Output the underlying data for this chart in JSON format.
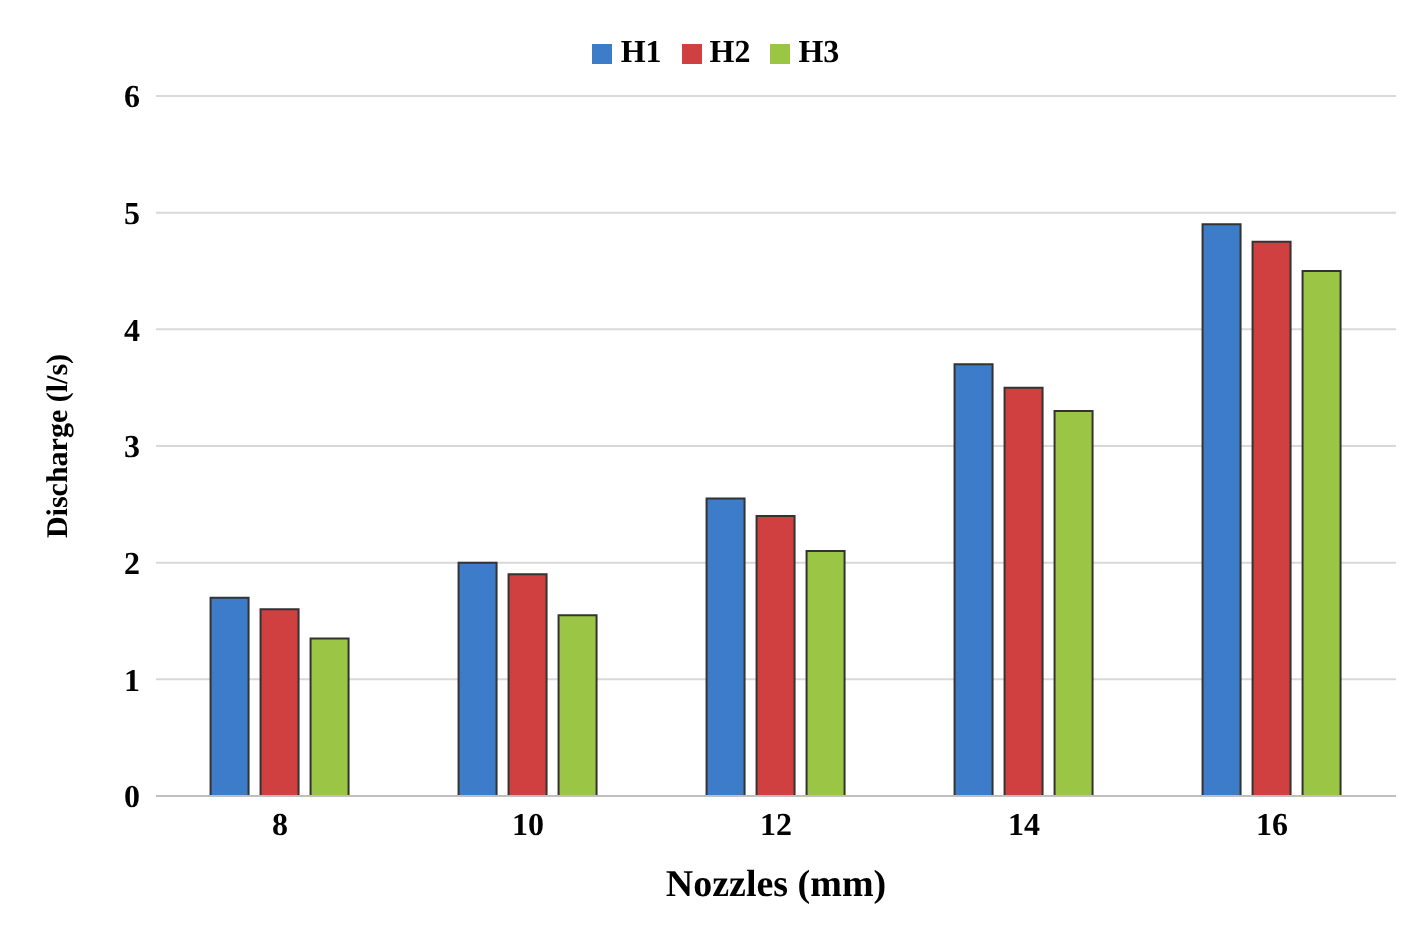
{
  "chart_data": {
    "type": "bar",
    "xlabel": "Nozzles (mm)",
    "ylabel": "Discharge (l/s)",
    "categories": [
      "8",
      "10",
      "12",
      "14",
      "16"
    ],
    "series": [
      {
        "name": "H1",
        "color": "#3d7cc9",
        "values": [
          1.7,
          2.0,
          2.55,
          3.7,
          4.9
        ]
      },
      {
        "name": "H2",
        "color": "#d04040",
        "values": [
          1.6,
          1.9,
          2.4,
          3.5,
          4.75
        ]
      },
      {
        "name": "H3",
        "color": "#9bc545",
        "values": [
          1.35,
          1.55,
          2.1,
          3.3,
          4.5
        ]
      }
    ],
    "ylim": [
      0,
      6
    ],
    "yticks": [
      0,
      1,
      2,
      3,
      4,
      5,
      6
    ],
    "grid": "y",
    "legend": "top"
  }
}
